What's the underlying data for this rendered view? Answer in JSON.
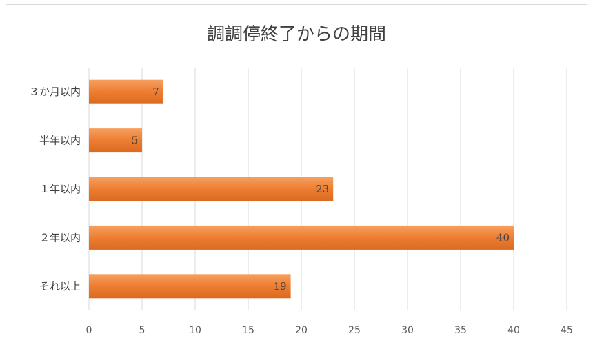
{
  "chart_data": {
    "type": "bar",
    "orientation": "horizontal",
    "title": "調調停終了からの期間",
    "categories": [
      "３か月以内",
      "半年以内",
      "１年以内",
      "２年以内",
      "それ以上"
    ],
    "values": [
      7,
      5,
      23,
      40,
      19
    ],
    "data_labels": [
      "7",
      "5",
      "23",
      "40",
      "19"
    ],
    "xlim": [
      0,
      45
    ],
    "x_ticks": [
      0,
      5,
      10,
      15,
      20,
      25,
      30,
      35,
      40,
      45
    ],
    "x_tick_labels": [
      "0",
      "5",
      "10",
      "15",
      "20",
      "25",
      "30",
      "35",
      "40",
      "45"
    ],
    "grid": true,
    "legend": "none",
    "colors": {
      "bar_top": "#f7a05f",
      "bar_mid": "#ed7d31",
      "bar_bottom": "#d96a1f",
      "grid": "#d9d9d9",
      "text": "#404040"
    }
  }
}
